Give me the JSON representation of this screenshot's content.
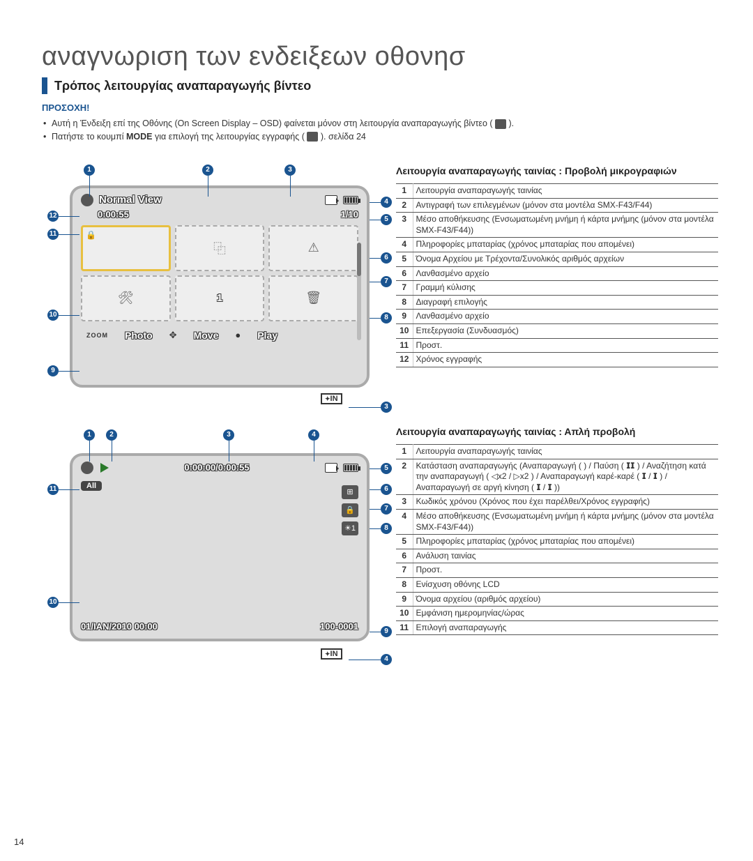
{
  "page_number": "14",
  "title": "αναγνωριση των ενδειξεων οθονησ",
  "section_heading": "Τρόπος λειτουργίας αναπαραγωγής βίντεο",
  "attention_label": "ΠΡΟΣΟΧΗ!",
  "bullets": {
    "b1_pre": "Αυτή η Ένδειξη επί της Οθόνης (On Screen Display – OSD) φαίνεται μόνον στη λειτουργία αναπαραγωγής βίντεο (",
    "b1_post": ").",
    "b2_pre": "Πατήστε το κουμπί ",
    "b2_mode": "MODE",
    "b2_mid": " για επιλογή της λειτουργίας εγγραφής (",
    "b2_post": ").    σελίδα 24"
  },
  "screen1": {
    "header_label": "Normal View",
    "time": "0:00:55",
    "count": "1/10",
    "footer_zoom": "ZOOM",
    "footer_photo": "Photo",
    "footer_move": "Move",
    "footer_play": "Play",
    "in_label": "IN",
    "thumb_num": "1"
  },
  "screen2": {
    "timecode": "0:00:00/0:00:55",
    "tag": "All",
    "datetime": "01/IAN/2010 00:00",
    "file": "100-0001",
    "in_label": "IN"
  },
  "table1_heading": "Λειτουργία αναπαραγωγής ταινίας : Προβολή μικρογραφιών",
  "table1": [
    {
      "n": "1",
      "t": "Λειτουργία αναπαραγωγής ταινίας"
    },
    {
      "n": "2",
      "t": "Αντιγραφή των επιλεγμένων (μόνον στα μοντέλα SMX-F43/F44)"
    },
    {
      "n": "3",
      "t": "Μέσο αποθήκευσης (Ενσωματωμένη μνήμη ή κάρτα μνήμης (μόνον στα μοντέλα SMX-F43/F44))"
    },
    {
      "n": "4",
      "t": "Πληροφορίες μπαταρίας (χρόνος μπαταρίας που απομένει)"
    },
    {
      "n": "5",
      "t": "Όνομα Αρχείου με Τρέχοντα/Συνολικός αριθμός αρχείων"
    },
    {
      "n": "6",
      "t": "Λανθασμένο αρχείο"
    },
    {
      "n": "7",
      "t": "Γραμμή κύλισης"
    },
    {
      "n": "8",
      "t": "Διαγραφή επιλογής"
    },
    {
      "n": "9",
      "t": "Λανθασμένο αρχείο"
    },
    {
      "n": "10",
      "t": "Επεξεργασία (Συνδυασμός)"
    },
    {
      "n": "11",
      "t": "Προστ."
    },
    {
      "n": "12",
      "t": "Χρόνος εγγραφής"
    }
  ],
  "table2_heading": "Λειτουργία αναπαραγωγής ταινίας : Απλή προβολή",
  "table2": [
    {
      "n": "1",
      "t": "Λειτουργία αναπαραγωγής ταινίας"
    },
    {
      "n": "2",
      "t": "Κατάσταση αναπαραγωγής (Αναπαραγωγή (  ) / Παύση ( 𝗜𝗜 ) / Αναζήτηση κατά την αναπαραγωγή ( ◁x2 / ▷x2 ) / Αναπαραγωγή καρέ-καρέ ( 𝗜 / 𝗜 ) / Αναπαραγωγή σε αργή κίνηση ( 𝗜 / 𝗜 ))"
    },
    {
      "n": "3",
      "t": "Κωδικός χρόνου (Χρόνος που έχει παρέλθει/Χρόνος εγγραφής)"
    },
    {
      "n": "4",
      "t": "Μέσο αποθήκευσης (Ενσωματωμένη μνήμη ή κάρτα μνήμης (μόνον στα μοντέλα SMX-F43/F44))"
    },
    {
      "n": "5",
      "t": "Πληροφορίες μπαταρίας (χρόνος μπαταρίας που απομένει)"
    },
    {
      "n": "6",
      "t": "Ανάλυση ταινίας"
    },
    {
      "n": "7",
      "t": "Προστ."
    },
    {
      "n": "8",
      "t": "Ενίσχυση οθόνης LCD"
    },
    {
      "n": "9",
      "t": "Όνομα αρχείου (αριθμός αρχείου)"
    },
    {
      "n": "10",
      "t": "Εμφάνιση ημερομηνίας/ώρας"
    },
    {
      "n": "11",
      "t": "Επιλογή αναπαραγωγής"
    }
  ],
  "colors": {
    "accent": "#1a5490"
  }
}
